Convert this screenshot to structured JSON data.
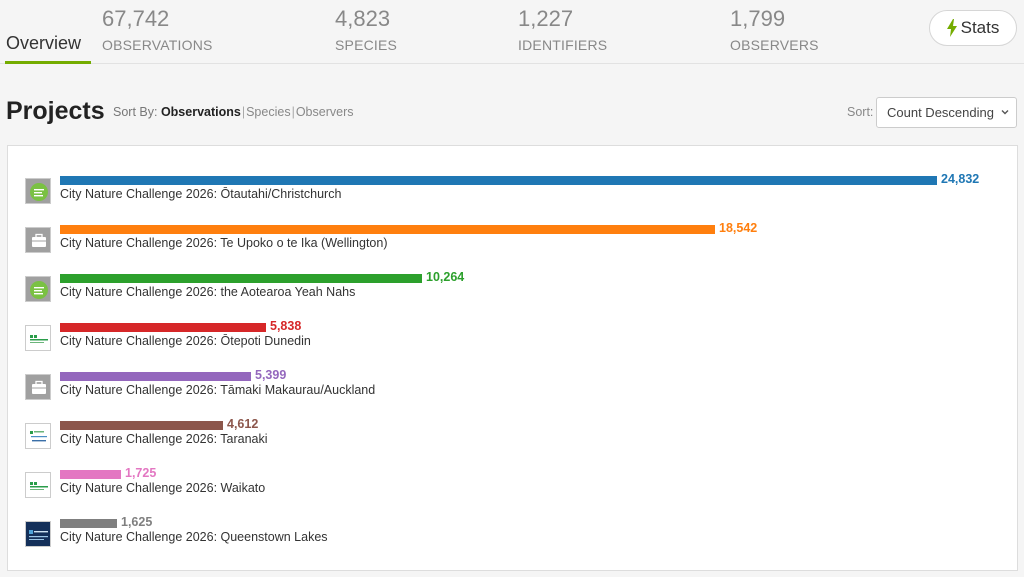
{
  "nav": {
    "overview_label": "Overview",
    "stats": [
      {
        "value": "67,742",
        "label": "OBSERVATIONS"
      },
      {
        "value": "4,823",
        "label": "SPECIES"
      },
      {
        "value": "1,227",
        "label": "IDENTIFIERS"
      },
      {
        "value": "1,799",
        "label": "OBSERVERS"
      }
    ],
    "stats_button": "Stats",
    "stats_button_icon": "lightning-bolt-icon"
  },
  "header": {
    "title": "Projects",
    "sort_by_label": "Sort By:",
    "sort_by_options": [
      "Observations",
      "Species",
      "Observers"
    ],
    "sort_by_active": "Observations",
    "sort_label": "Sort:",
    "sort_value": "Count Descending"
  },
  "chart_data": {
    "type": "bar",
    "orientation": "horizontal",
    "xlim": [
      0,
      24832
    ],
    "categories": [
      "City Nature Challenge 2026: Ōtautahi/Christchurch",
      "City Nature Challenge 2026: Te Upoko o te Ika (Wellington)",
      "City Nature Challenge 2026: the Aotearoa Yeah Nahs",
      "City Nature Challenge 2026: Ōtepoti Dunedin",
      "City Nature Challenge 2026: Tāmaki Makaurau/Auckland",
      "City Nature Challenge 2026: Taranaki",
      "City Nature Challenge 2026: Waikato",
      "City Nature Challenge 2026: Queenstown Lakes"
    ],
    "values": [
      24832,
      18542,
      10264,
      5838,
      5399,
      4612,
      1725,
      1625
    ],
    "value_labels": [
      "24,832",
      "18,542",
      "10,264",
      "5,838",
      "5,399",
      "4,612",
      "1,725",
      "1,625"
    ],
    "colors": [
      "#1f77b4",
      "#ff7f0e",
      "#2ca02c",
      "#d62728",
      "#9467bd",
      "#8c564b",
      "#e377c2",
      "#7f7f7f"
    ],
    "icons": [
      "cnc-green-logo-icon",
      "briefcase-icon",
      "cnc-green-logo-icon",
      "cnc-small-logo-icon",
      "briefcase-icon",
      "taranaki-logo-icon",
      "cnc-small-logo-icon",
      "queenstown-logo-icon"
    ]
  }
}
